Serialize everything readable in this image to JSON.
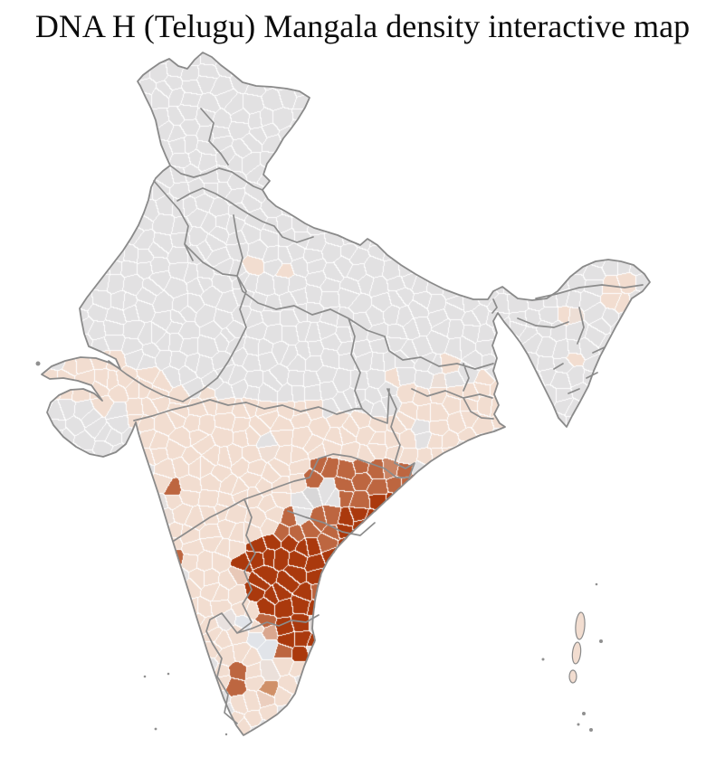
{
  "header": {
    "title": "DNA H (Telugu) Mangala density interactive map"
  },
  "map": {
    "kind": "district-choropleth",
    "palette": {
      "sea": "#ffffff",
      "no_data": "#e2e1e2",
      "no_data_alt": "#e1e4e9",
      "density_low": "#f2ddd0",
      "density_mid": "#d09068",
      "density_medium": "#bd6640",
      "density_high": "#aa390d",
      "excluded": "#7b7b7b",
      "district_border": "#ffffff",
      "state_border": "#8c8c8c",
      "coast_border": "#8a8a8a"
    }
  }
}
